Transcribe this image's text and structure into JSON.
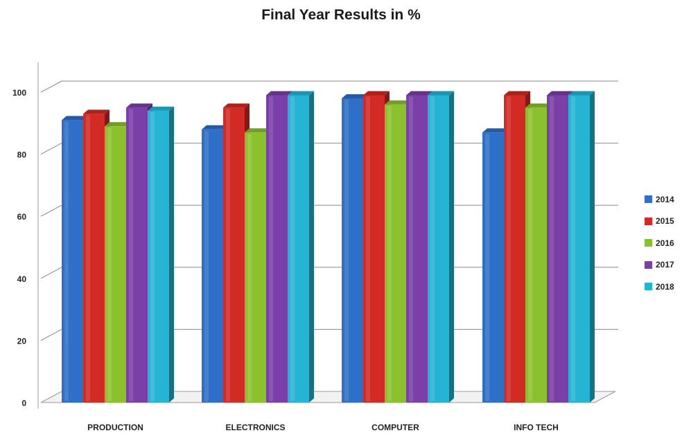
{
  "chart_data": {
    "type": "bar",
    "title": "Final Year Results in %",
    "xlabel": "",
    "ylabel": "",
    "ylim": [
      0,
      100
    ],
    "yticks": [
      "0",
      "20",
      "40",
      "60",
      "80",
      "100"
    ],
    "grid": true,
    "legend_position": "right",
    "categories": [
      "PRODUCTION",
      "ELECTRONICS",
      "COMPUTER",
      "INFO TECH"
    ],
    "series": [
      {
        "name": "2014",
        "color": "#2E6FC7",
        "values": [
          91,
          88,
          98,
          87
        ]
      },
      {
        "name": "2015",
        "color": "#D22B25",
        "values": [
          93,
          95,
          99,
          99
        ]
      },
      {
        "name": "2016",
        "color": "#8CC12E",
        "values": [
          89,
          87,
          96,
          95
        ]
      },
      {
        "name": "2017",
        "color": "#7A3FA8",
        "values": [
          95,
          99,
          99,
          99
        ]
      },
      {
        "name": "2018",
        "color": "#26B4D4",
        "values": [
          94,
          99,
          99,
          99
        ]
      }
    ]
  }
}
